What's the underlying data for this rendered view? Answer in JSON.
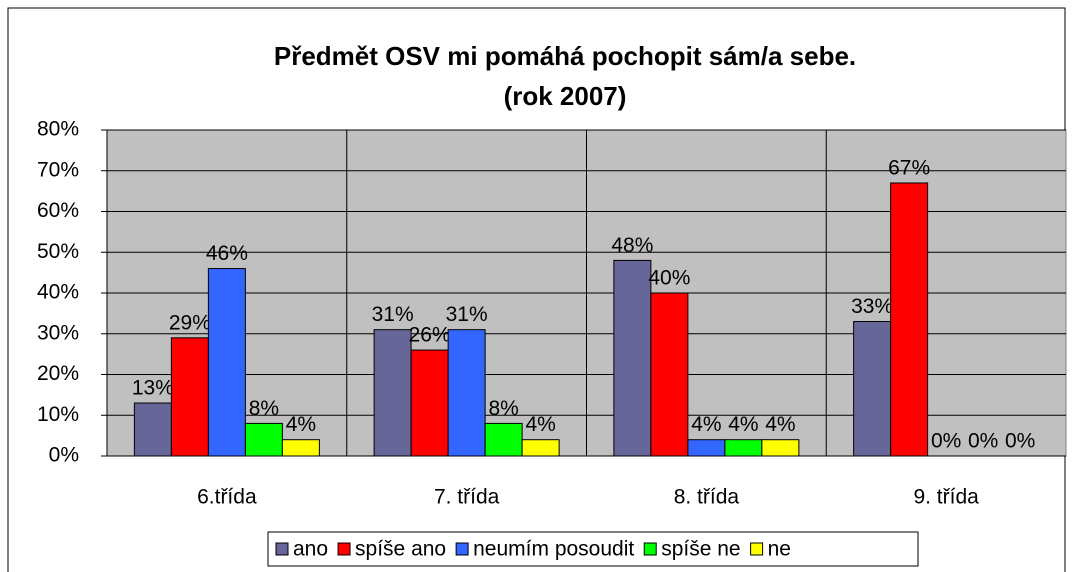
{
  "chart_data": {
    "type": "bar",
    "title_lines": [
      "Předmět OSV mi pomáhá pochopit sám/a sebe.",
      "(rok 2007)"
    ],
    "categories": [
      "6.třída",
      "7. třída",
      "8. třída",
      "9. třída"
    ],
    "series": [
      {
        "name": "ano",
        "color": "#666699",
        "values": [
          13,
          31,
          48,
          33
        ],
        "value_labels": [
          "13%",
          "31%",
          "48%",
          "33%"
        ]
      },
      {
        "name": "spíše ano",
        "color": "#ff0000",
        "values": [
          29,
          26,
          40,
          67
        ],
        "value_labels": [
          "29%",
          "26%",
          "40%",
          "67%"
        ]
      },
      {
        "name": "neumím posoudit",
        "color": "#3366ff",
        "values": [
          46,
          31,
          4,
          0
        ],
        "value_labels": [
          "46%",
          "31%",
          "4%",
          "0%"
        ]
      },
      {
        "name": "spíše ne",
        "color": "#00ff00",
        "values": [
          8,
          8,
          4,
          0
        ],
        "value_labels": [
          "8%",
          "8%",
          "4%",
          "0%"
        ]
      },
      {
        "name": "ne",
        "color": "#ffff00",
        "values": [
          4,
          4,
          4,
          0
        ],
        "value_labels": [
          "4%",
          "4%",
          "4%",
          "0%"
        ]
      }
    ],
    "ylim": [
      0,
      80
    ],
    "yticks": [
      {
        "value": 0,
        "label": "0%"
      },
      {
        "value": 10,
        "label": "10%"
      },
      {
        "value": 20,
        "label": "20%"
      },
      {
        "value": 30,
        "label": "30%"
      },
      {
        "value": 40,
        "label": "40%"
      },
      {
        "value": 50,
        "label": "50%"
      },
      {
        "value": 60,
        "label": "60%"
      },
      {
        "value": 70,
        "label": "70%"
      },
      {
        "value": 80,
        "label": "80%"
      }
    ],
    "grid": true,
    "legend": "bottom",
    "plot_background": "#c0c0c0"
  }
}
